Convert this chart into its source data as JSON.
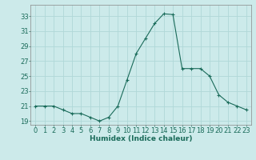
{
  "x": [
    0,
    1,
    2,
    3,
    4,
    5,
    6,
    7,
    8,
    9,
    10,
    11,
    12,
    13,
    14,
    15,
    16,
    17,
    18,
    19,
    20,
    21,
    22,
    23
  ],
  "y": [
    21.0,
    21.0,
    21.0,
    20.5,
    20.0,
    20.0,
    19.5,
    19.0,
    19.5,
    21.0,
    24.5,
    28.0,
    30.0,
    32.0,
    33.3,
    33.2,
    26.0,
    26.0,
    26.0,
    25.0,
    22.5,
    21.5,
    21.0,
    20.5
  ],
  "line_color": "#1a6b5a",
  "marker": "P",
  "marker_size": 2.5,
  "bg_color": "#cceaea",
  "grid_color": "#b0d8d8",
  "xlabel": "Humidex (Indice chaleur)",
  "xlim": [
    -0.5,
    23.5
  ],
  "ylim": [
    18.5,
    34.5
  ],
  "yticks": [
    19,
    21,
    23,
    25,
    27,
    29,
    31,
    33
  ],
  "xticks": [
    0,
    1,
    2,
    3,
    4,
    5,
    6,
    7,
    8,
    9,
    10,
    11,
    12,
    13,
    14,
    15,
    16,
    17,
    18,
    19,
    20,
    21,
    22,
    23
  ],
  "label_fontsize": 6.5,
  "tick_fontsize": 6.0
}
